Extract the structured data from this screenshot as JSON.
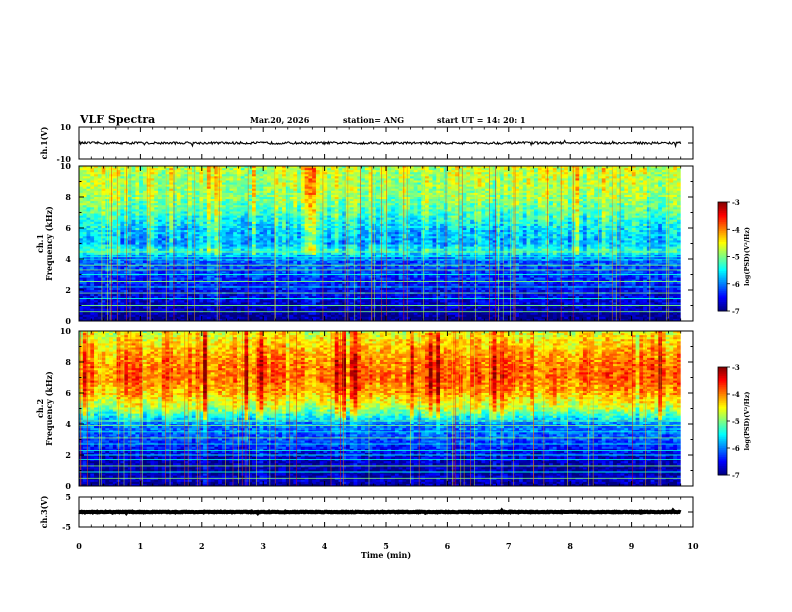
{
  "header": {
    "title": "VLF Spectra",
    "date": "Mar.20, 2026",
    "station": "station= ANG",
    "start": "start  UT =   14: 20: 1"
  },
  "chart_data": [
    {
      "type": "line",
      "id": "ch1-waveform",
      "ylabel": "ch.1(V)",
      "ylim": [
        -10,
        10
      ],
      "yticks": [
        "10",
        "-10"
      ],
      "xlim": [
        0,
        10
      ],
      "baseline": 0,
      "noise_amplitude": 1.5
    },
    {
      "type": "heatmap",
      "id": "ch1-spectrogram",
      "ylabel_line1": "ch.1",
      "ylabel_line2": "Frequency  (kHz)",
      "ylim": [
        0,
        10
      ],
      "yticks": [
        "0",
        "2",
        "4",
        "6",
        "8",
        "10"
      ],
      "xlim": [
        0,
        9.8
      ],
      "colorbar": {
        "label": "log(PSD)(V²/Hz)",
        "range": [
          -7,
          -3
        ],
        "ticks": [
          "-3",
          "-4",
          "-5",
          "-6",
          "-7"
        ]
      },
      "profile": [
        {
          "f": 0.0,
          "v": -7.0
        },
        {
          "f": 0.4,
          "v": -6.9
        },
        {
          "f": 1.0,
          "v": -6.7
        },
        {
          "f": 2.0,
          "v": -6.5
        },
        {
          "f": 3.0,
          "v": -6.3
        },
        {
          "f": 4.0,
          "v": -6.1
        },
        {
          "f": 4.5,
          "v": -5.3
        },
        {
          "f": 5.0,
          "v": -5.8
        },
        {
          "f": 6.0,
          "v": -5.6
        },
        {
          "f": 7.0,
          "v": -5.2
        },
        {
          "f": 8.0,
          "v": -4.9
        },
        {
          "f": 9.0,
          "v": -4.8
        },
        {
          "f": 10.0,
          "v": -4.7
        }
      ],
      "lines_khz": [
        0.6,
        1.0,
        1.45,
        1.8,
        2.2,
        2.55,
        3.0,
        3.3,
        3.6,
        3.95,
        4.15,
        4.45
      ]
    },
    {
      "type": "heatmap",
      "id": "ch2-spectrogram",
      "ylabel_line1": "ch.2",
      "ylabel_line2": "Frequency  (kHz)",
      "ylim": [
        0,
        10
      ],
      "yticks": [
        "0",
        "2",
        "4",
        "6",
        "8",
        "10"
      ],
      "xlim": [
        0,
        9.8
      ],
      "colorbar": {
        "label": "log(PSD)(V²/Hz)",
        "range": [
          -7,
          -3
        ],
        "ticks": [
          "-3",
          "-4",
          "-5",
          "-6",
          "-7"
        ]
      },
      "profile": [
        {
          "f": 0.0,
          "v": -7.0
        },
        {
          "f": 0.4,
          "v": -6.7
        },
        {
          "f": 1.0,
          "v": -6.9
        },
        {
          "f": 2.0,
          "v": -6.6
        },
        {
          "f": 3.0,
          "v": -6.2
        },
        {
          "f": 4.0,
          "v": -6.0
        },
        {
          "f": 4.5,
          "v": -5.4
        },
        {
          "f": 5.0,
          "v": -4.8
        },
        {
          "f": 6.0,
          "v": -4.2
        },
        {
          "f": 7.0,
          "v": -3.9
        },
        {
          "f": 8.0,
          "v": -4.0
        },
        {
          "f": 9.0,
          "v": -4.3
        },
        {
          "f": 10.0,
          "v": -4.6
        }
      ],
      "lines_khz": [
        0.5,
        0.9,
        1.3,
        1.7,
        2.0,
        2.3,
        2.7,
        3.1,
        3.5,
        3.9,
        4.2
      ]
    },
    {
      "type": "line",
      "id": "ch3-waveform",
      "ylabel": "ch.3(V)",
      "ylim": [
        -5,
        5
      ],
      "yticks": [
        "5",
        "-5"
      ],
      "xlim": [
        0,
        10
      ],
      "baseline": 0,
      "noise_amplitude": 0.25
    }
  ],
  "xaxis": {
    "label": "Time  (min)",
    "ticks": [
      "0",
      "1",
      "2",
      "3",
      "4",
      "5",
      "6",
      "7",
      "8",
      "9",
      "10"
    ]
  }
}
